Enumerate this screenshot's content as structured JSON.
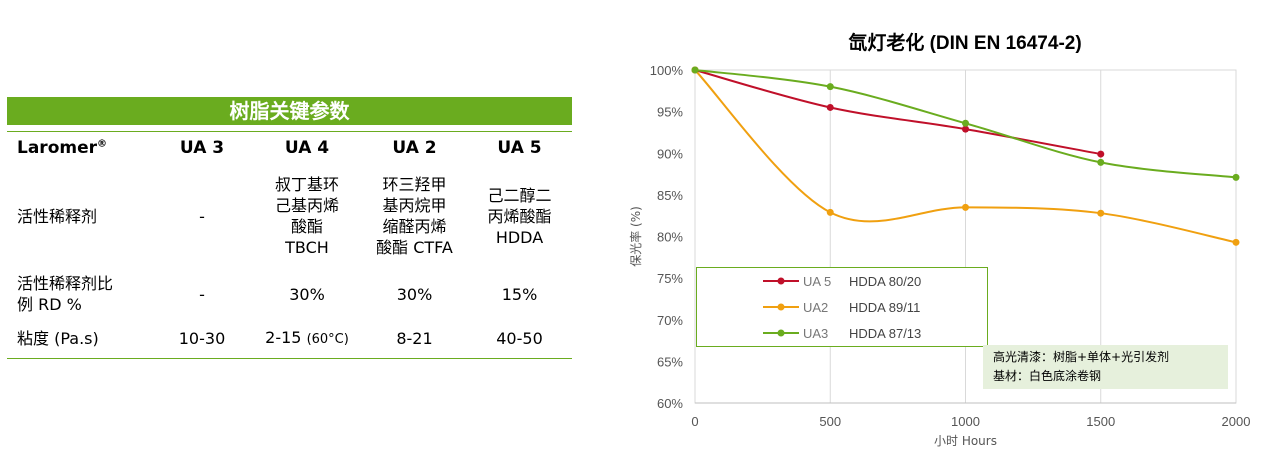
{
  "table": {
    "title": "树脂关键参数",
    "brand": "Laromer",
    "brand_mark": "®",
    "columns": [
      "UA 3",
      "UA 4",
      "UA 2",
      "UA 5"
    ],
    "rows": [
      {
        "label": "活性稀释剂",
        "cells": [
          "-",
          "叔丁基环\n己基丙烯\n酸酯\nTBCH",
          "环三羟甲\n基丙烷甲\n缩醛丙烯\n酸酯 CTFA",
          "己二醇二\n丙烯酸酯\nHDDA"
        ]
      },
      {
        "label": "活性稀释剂比\n例 RD %",
        "cells": [
          "-",
          "30%",
          "30%",
          "15%"
        ]
      },
      {
        "label": "粘度 (Pa.s)",
        "cells": [
          "10-30",
          "2-15",
          "8-21",
          "40-50"
        ],
        "notes": [
          "",
          "(60°C)",
          "",
          ""
        ]
      }
    ]
  },
  "chart_data": {
    "type": "line",
    "title": "氙灯老化 (DIN EN 16474-2)",
    "xlabel": "小时 Hours",
    "ylabel": "保光率 (%)",
    "x_ticks": [
      0,
      500,
      1000,
      1500,
      2000
    ],
    "y_ticks": [
      "100%",
      "95%",
      "90%",
      "85%",
      "80%",
      "75%",
      "70%",
      "65%",
      "60%"
    ],
    "xlim": [
      0,
      2000
    ],
    "ylim": [
      60,
      100
    ],
    "grid": "vertical",
    "legend_position": "lower-left",
    "series": [
      {
        "name": "UA 5",
        "desc": "HDDA 80/20",
        "color": "#c0102a",
        "x": [
          0,
          500,
          1000,
          1500
        ],
        "y": [
          100,
          95.5,
          92.9,
          89.9
        ]
      },
      {
        "name": "UA2",
        "desc": "HDDA 89/11",
        "color": "#f0a010",
        "x": [
          0,
          500,
          1000,
          1500,
          2000
        ],
        "y": [
          100,
          82.9,
          83.5,
          82.8,
          79.3
        ]
      },
      {
        "name": "UA3",
        "desc": "HDDA 87/13",
        "color": "#6aac1f",
        "x": [
          0,
          500,
          1000,
          1500,
          2000
        ],
        "y": [
          100,
          98.0,
          93.6,
          88.9,
          87.1
        ]
      }
    ],
    "annotation": [
      "高光清漆：树脂+单体+光引发剂",
      "基材：白色底涂卷钢"
    ]
  }
}
